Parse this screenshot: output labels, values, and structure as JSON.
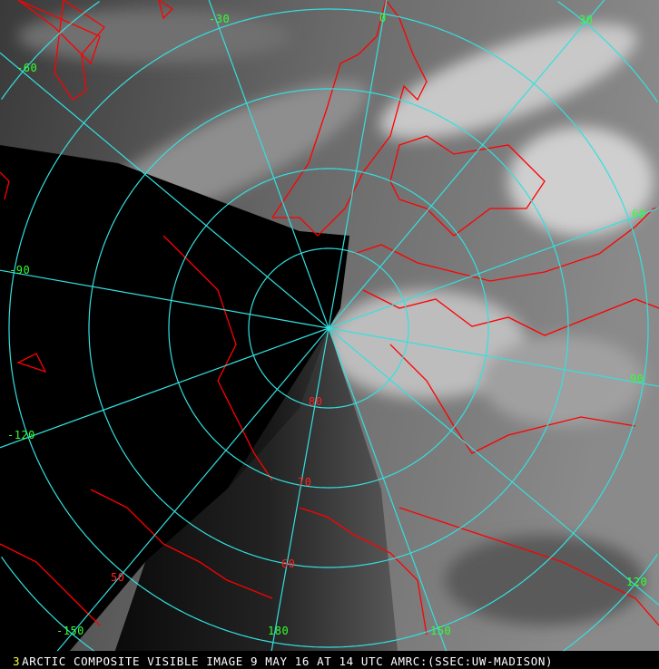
{
  "image": {
    "frame_number": "3",
    "caption": "ARCTIC COMPOSITE VISIBLE IMAGE 9 MAY 16 AT 14 UTC AMRC:(SSEC:UW-MADISON)",
    "colors": {
      "graticule": "#33e0e0",
      "coastline": "#ff0000",
      "longitude_labels": "#33ff33",
      "latitude_labels": "#ff2020",
      "caption": "#ffffff",
      "frame_number": "#ffff33"
    }
  },
  "longitude_labels": [
    "-60",
    "-30",
    "0",
    "30",
    "60",
    "90",
    "120",
    "150",
    "180",
    "-150",
    "-120",
    "-90"
  ],
  "latitude_labels": [
    "80",
    "70",
    "60",
    "50"
  ]
}
